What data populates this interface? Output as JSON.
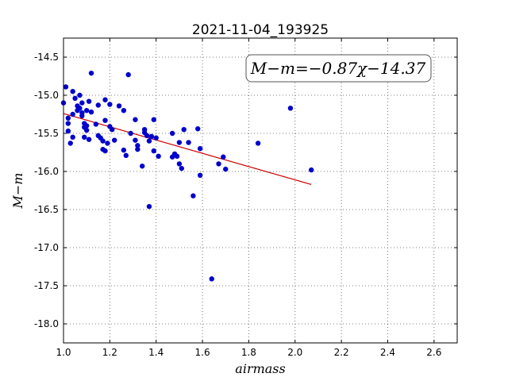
{
  "chart_data": {
    "type": "scatter",
    "title": "2021-11-04_193925",
    "xlabel": "airmass",
    "ylabel": "M−m",
    "xlim": [
      1.0,
      2.7
    ],
    "ylim": [
      -18.25,
      -14.25
    ],
    "xticks": [
      "1.0",
      "1.2",
      "1.4",
      "1.6",
      "1.8",
      "2.0",
      "2.2",
      "2.4",
      "2.6"
    ],
    "yticks": [
      "-14.5",
      "-15.0",
      "-15.5",
      "-16.0",
      "-16.5",
      "-17.0",
      "-17.5",
      "-18.0"
    ],
    "grid": true,
    "annotation": "M−m=−0.87χ−14.37",
    "fit": {
      "slope": -0.87,
      "intercept": -14.37,
      "x_range": [
        1.0,
        2.07
      ],
      "color": "#cc0000"
    },
    "point_color": "#0000cc",
    "points": [
      [
        1.0,
        -15.1
      ],
      [
        1.01,
        -14.89
      ],
      [
        1.02,
        -15.3
      ],
      [
        1.02,
        -15.37
      ],
      [
        1.02,
        -15.47
      ],
      [
        1.03,
        -15.63
      ],
      [
        1.04,
        -14.95
      ],
      [
        1.04,
        -15.25
      ],
      [
        1.04,
        -15.55
      ],
      [
        1.05,
        -15.04
      ],
      [
        1.06,
        -15.2
      ],
      [
        1.06,
        -15.14
      ],
      [
        1.07,
        -15.0
      ],
      [
        1.07,
        -15.17
      ],
      [
        1.08,
        -15.1
      ],
      [
        1.08,
        -15.23
      ],
      [
        1.08,
        -15.27
      ],
      [
        1.09,
        -15.37
      ],
      [
        1.09,
        -15.42
      ],
      [
        1.09,
        -15.55
      ],
      [
        1.1,
        -15.2
      ],
      [
        1.1,
        -15.46
      ],
      [
        1.1,
        -15.4
      ],
      [
        1.11,
        -15.08
      ],
      [
        1.11,
        -15.58
      ],
      [
        1.12,
        -14.71
      ],
      [
        1.12,
        -15.22
      ],
      [
        1.14,
        -15.38
      ],
      [
        1.15,
        -15.13
      ],
      [
        1.15,
        -15.53
      ],
      [
        1.16,
        -15.56
      ],
      [
        1.17,
        -15.6
      ],
      [
        1.17,
        -15.71
      ],
      [
        1.18,
        -15.73
      ],
      [
        1.18,
        -15.06
      ],
      [
        1.18,
        -15.33
      ],
      [
        1.19,
        -15.63
      ],
      [
        1.2,
        -15.12
      ],
      [
        1.2,
        -15.41
      ],
      [
        1.21,
        -15.45
      ],
      [
        1.22,
        -15.59
      ],
      [
        1.24,
        -15.14
      ],
      [
        1.26,
        -15.72
      ],
      [
        1.26,
        -15.2
      ],
      [
        1.27,
        -15.79
      ],
      [
        1.28,
        -14.73
      ],
      [
        1.29,
        -15.5
      ],
      [
        1.31,
        -15.32
      ],
      [
        1.31,
        -15.59
      ],
      [
        1.32,
        -15.66
      ],
      [
        1.32,
        -15.71
      ],
      [
        1.34,
        -15.93
      ],
      [
        1.35,
        -15.45
      ],
      [
        1.35,
        -15.49
      ],
      [
        1.36,
        -15.53
      ],
      [
        1.37,
        -15.6
      ],
      [
        1.37,
        -16.46
      ],
      [
        1.38,
        -15.54
      ],
      [
        1.39,
        -15.32
      ],
      [
        1.39,
        -15.73
      ],
      [
        1.4,
        -15.56
      ],
      [
        1.41,
        -15.8
      ],
      [
        1.47,
        -15.81
      ],
      [
        1.47,
        -15.5
      ],
      [
        1.48,
        -15.77
      ],
      [
        1.49,
        -15.8
      ],
      [
        1.5,
        -15.62
      ],
      [
        1.5,
        -15.9
      ],
      [
        1.51,
        -15.96
      ],
      [
        1.52,
        -15.45
      ],
      [
        1.54,
        -15.62
      ],
      [
        1.56,
        -16.32
      ],
      [
        1.58,
        -15.44
      ],
      [
        1.59,
        -15.7
      ],
      [
        1.59,
        -16.05
      ],
      [
        1.64,
        -17.41
      ],
      [
        1.67,
        -15.9
      ],
      [
        1.69,
        -15.81
      ],
      [
        1.7,
        -15.97
      ],
      [
        1.84,
        -15.63
      ],
      [
        1.98,
        -15.17
      ],
      [
        2.07,
        -15.98
      ]
    ]
  }
}
